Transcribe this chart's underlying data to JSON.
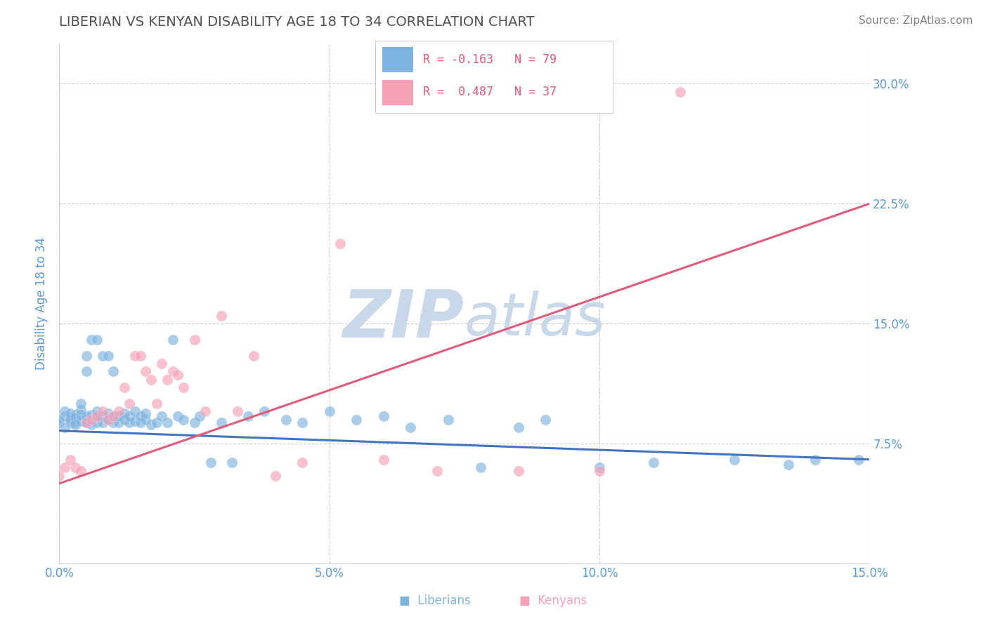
{
  "title": "LIBERIAN VS KENYAN DISABILITY AGE 18 TO 34 CORRELATION CHART",
  "source": "Source: ZipAtlas.com",
  "ylabel_label": "Disability Age 18 to 34",
  "xlim": [
    0.0,
    0.15
  ],
  "ylim": [
    0.0,
    0.325
  ],
  "xticks": [
    0.0,
    0.05,
    0.1,
    0.15
  ],
  "xtick_labels": [
    "0.0%",
    "5.0%",
    "10.0%",
    "15.0%"
  ],
  "yticks": [
    0.0,
    0.075,
    0.15,
    0.225,
    0.3
  ],
  "ytick_labels": [
    "",
    "7.5%",
    "15.0%",
    "22.5%",
    "30.0%"
  ],
  "liberian_R": -0.163,
  "liberian_N": 79,
  "kenyan_R": 0.487,
  "kenyan_N": 37,
  "liberian_color": "#7eb3e0",
  "kenyan_color": "#f4a0b5",
  "liberian_line_color": "#4472c4",
  "kenyan_line_color": "#e05a7a",
  "watermark_color": "#c8d8e8",
  "background_color": "#ffffff",
  "grid_color": "#cccccc",
  "title_color": "#505050",
  "tick_color": "#5b9bd5",
  "source_color": "#808080",
  "liberian_x": [
    0.0,
    0.0,
    0.001,
    0.001,
    0.001,
    0.002,
    0.002,
    0.002,
    0.002,
    0.003,
    0.003,
    0.003,
    0.003,
    0.004,
    0.004,
    0.004,
    0.004,
    0.005,
    0.005,
    0.005,
    0.005,
    0.006,
    0.006,
    0.006,
    0.007,
    0.007,
    0.007,
    0.007,
    0.008,
    0.008,
    0.008,
    0.009,
    0.009,
    0.009,
    0.01,
    0.01,
    0.01,
    0.011,
    0.011,
    0.012,
    0.012,
    0.013,
    0.013,
    0.014,
    0.014,
    0.015,
    0.015,
    0.016,
    0.016,
    0.017,
    0.018,
    0.019,
    0.02,
    0.021,
    0.022,
    0.023,
    0.025,
    0.026,
    0.028,
    0.03,
    0.032,
    0.035,
    0.038,
    0.042,
    0.045,
    0.05,
    0.055,
    0.06,
    0.065,
    0.072,
    0.078,
    0.085,
    0.09,
    0.1,
    0.11,
    0.125,
    0.135,
    0.14,
    0.148
  ],
  "liberian_y": [
    0.088,
    0.09,
    0.085,
    0.092,
    0.095,
    0.088,
    0.091,
    0.09,
    0.094,
    0.088,
    0.093,
    0.091,
    0.087,
    0.089,
    0.093,
    0.096,
    0.1,
    0.088,
    0.092,
    0.12,
    0.13,
    0.087,
    0.093,
    0.14,
    0.088,
    0.092,
    0.095,
    0.14,
    0.088,
    0.092,
    0.13,
    0.09,
    0.094,
    0.13,
    0.088,
    0.092,
    0.12,
    0.088,
    0.092,
    0.09,
    0.094,
    0.088,
    0.092,
    0.089,
    0.095,
    0.088,
    0.092,
    0.09,
    0.094,
    0.087,
    0.088,
    0.092,
    0.088,
    0.14,
    0.092,
    0.09,
    0.088,
    0.092,
    0.063,
    0.088,
    0.063,
    0.092,
    0.095,
    0.09,
    0.088,
    0.095,
    0.09,
    0.092,
    0.085,
    0.09,
    0.06,
    0.085,
    0.09,
    0.06,
    0.063,
    0.065,
    0.062,
    0.065,
    0.065
  ],
  "kenyan_x": [
    0.0,
    0.001,
    0.002,
    0.003,
    0.004,
    0.005,
    0.006,
    0.007,
    0.008,
    0.009,
    0.01,
    0.011,
    0.012,
    0.013,
    0.014,
    0.015,
    0.016,
    0.017,
    0.018,
    0.019,
    0.02,
    0.021,
    0.022,
    0.023,
    0.025,
    0.027,
    0.03,
    0.033,
    0.036,
    0.04,
    0.045,
    0.052,
    0.06,
    0.07,
    0.085,
    0.1,
    0.115
  ],
  "kenyan_y": [
    0.055,
    0.06,
    0.065,
    0.06,
    0.058,
    0.088,
    0.09,
    0.092,
    0.095,
    0.09,
    0.092,
    0.095,
    0.11,
    0.1,
    0.13,
    0.13,
    0.12,
    0.115,
    0.1,
    0.125,
    0.115,
    0.12,
    0.118,
    0.11,
    0.14,
    0.095,
    0.155,
    0.095,
    0.13,
    0.055,
    0.063,
    0.2,
    0.065,
    0.058,
    0.058,
    0.058,
    0.295
  ],
  "blue_line_x0": 0.0,
  "blue_line_y0": 0.083,
  "blue_line_x1": 0.15,
  "blue_line_y1": 0.065,
  "pink_line_x0": 0.0,
  "pink_line_y0": 0.05,
  "pink_line_x1": 0.15,
  "pink_line_y1": 0.225
}
